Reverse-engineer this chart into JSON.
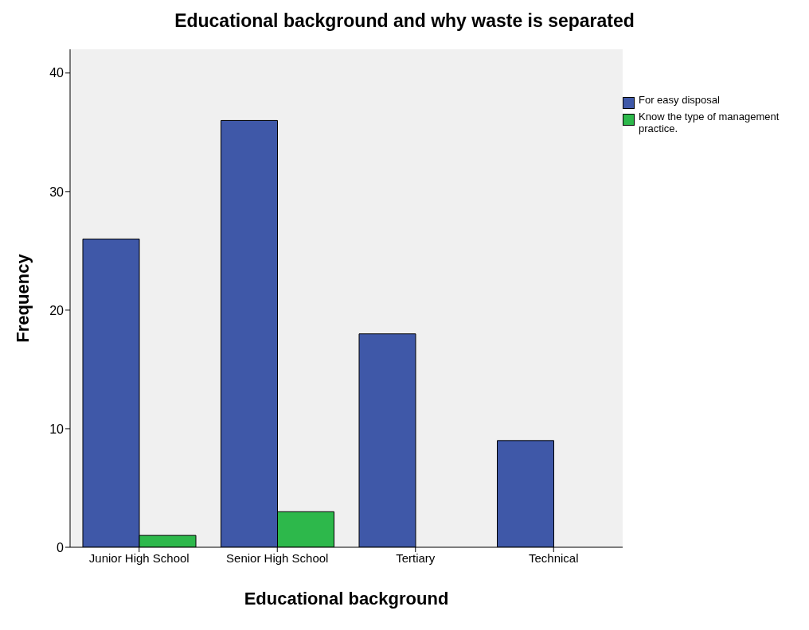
{
  "chart_data": {
    "type": "bar",
    "title": "Educational background and why waste is separated",
    "xlabel": "Educational background",
    "ylabel": "Frequency",
    "categories": [
      "Junior High School",
      "Senior High School",
      "Tertiary",
      "Technical"
    ],
    "series": [
      {
        "name": "For easy disposal",
        "color": "#3f58a8",
        "values": [
          26,
          36,
          18,
          9
        ]
      },
      {
        "name": "Know the type of management practice.",
        "color": "#2db84b",
        "values": [
          1,
          3,
          0,
          0
        ]
      }
    ],
    "ylim": [
      0,
      42
    ],
    "yticks": [
      0,
      10,
      20,
      30,
      40
    ],
    "grid": false,
    "legend": "top right"
  }
}
